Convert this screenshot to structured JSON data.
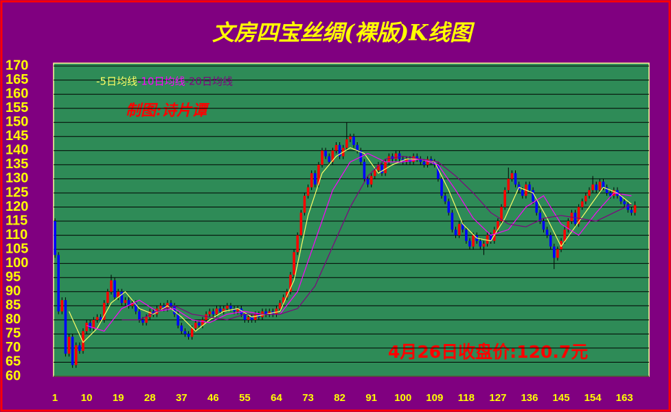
{
  "chart_data": {
    "type": "candlestick",
    "title": "文房四宝丝绸(裸版)K线图",
    "annotation": "制图:诗片谭",
    "close_note": "4月26日收盘价:120.7元",
    "up_color": "#ff0000",
    "down_color": "#0000ff",
    "ylim": [
      60,
      171
    ],
    "yticks": [
      60,
      65,
      70,
      75,
      80,
      85,
      90,
      95,
      100,
      105,
      110,
      115,
      120,
      125,
      130,
      135,
      140,
      145,
      150,
      155,
      160,
      165,
      170
    ],
    "xlim": [
      0.6,
      170
    ],
    "xticks": [
      1,
      10,
      19,
      28,
      37,
      46,
      55,
      64,
      73,
      82,
      91,
      100,
      109,
      118,
      127,
      136,
      145,
      154,
      163
    ],
    "grid": true,
    "x": [
      1,
      2,
      3,
      4,
      5,
      6,
      7,
      8,
      9,
      10,
      11,
      12,
      13,
      14,
      15,
      16,
      17,
      18,
      19,
      20,
      21,
      22,
      23,
      24,
      25,
      26,
      27,
      28,
      29,
      30,
      31,
      32,
      33,
      34,
      35,
      36,
      37,
      38,
      39,
      40,
      41,
      42,
      43,
      44,
      45,
      46,
      47,
      48,
      49,
      50,
      51,
      52,
      53,
      54,
      55,
      56,
      57,
      58,
      59,
      60,
      61,
      62,
      63,
      64,
      65,
      66,
      67,
      68,
      69,
      70,
      71,
      72,
      73,
      74,
      75,
      76,
      77,
      78,
      79,
      80,
      81,
      82,
      83,
      84,
      85,
      86,
      87,
      88,
      89,
      90,
      91,
      92,
      93,
      94,
      95,
      96,
      97,
      98,
      99,
      100,
      101,
      102,
      103,
      104,
      105,
      106,
      107,
      108,
      109,
      110,
      111,
      112,
      113,
      114,
      115,
      116,
      117,
      118,
      119,
      120,
      121,
      122,
      123,
      124,
      125,
      126,
      127,
      128,
      129,
      130,
      131,
      132,
      133,
      134,
      135,
      136,
      137,
      138,
      139,
      140,
      141,
      142,
      143,
      144,
      145,
      146,
      147,
      148,
      149,
      150,
      151,
      152,
      153,
      154,
      155,
      156,
      157,
      158,
      159,
      160,
      161,
      162,
      163,
      164,
      165,
      166
    ],
    "candles": [
      [
        115,
        116,
        102,
        103
      ],
      [
        103,
        104,
        82,
        83
      ],
      [
        83,
        88,
        82,
        87
      ],
      [
        87,
        88,
        67,
        68
      ],
      [
        68,
        75,
        67,
        74
      ],
      [
        74,
        75,
        63,
        64
      ],
      [
        64,
        72,
        63,
        71
      ],
      [
        71,
        72,
        68,
        69
      ],
      [
        69,
        77,
        68,
        76
      ],
      [
        76,
        80,
        75,
        79
      ],
      [
        79,
        80,
        76,
        77
      ],
      [
        77,
        81,
        76,
        80
      ],
      [
        80,
        82,
        79,
        81
      ],
      [
        81,
        82,
        79,
        80
      ],
      [
        80,
        87,
        79,
        86
      ],
      [
        86,
        91,
        85,
        90
      ],
      [
        90,
        96,
        89,
        94
      ],
      [
        94,
        95,
        87,
        88
      ],
      [
        88,
        91,
        87,
        90
      ],
      [
        90,
        91,
        85,
        86
      ],
      [
        86,
        88,
        85,
        87
      ],
      [
        87,
        88,
        84,
        85
      ],
      [
        85,
        87,
        84,
        86
      ],
      [
        86,
        87,
        82,
        83
      ],
      [
        83,
        84,
        79,
        80
      ],
      [
        80,
        81,
        78,
        79
      ],
      [
        79,
        82,
        78,
        81
      ],
      [
        81,
        84,
        80,
        83
      ],
      [
        83,
        84,
        81,
        82
      ],
      [
        82,
        85,
        81,
        84
      ],
      [
        84,
        86,
        83,
        85
      ],
      [
        85,
        86,
        83,
        84
      ],
      [
        84,
        87,
        83,
        86
      ],
      [
        86,
        87,
        84,
        85
      ],
      [
        85,
        86,
        81,
        82
      ],
      [
        82,
        83,
        77,
        78
      ],
      [
        78,
        79,
        75,
        76
      ],
      [
        76,
        77,
        74,
        75
      ],
      [
        75,
        76,
        73,
        74
      ],
      [
        74,
        78,
        73,
        77
      ],
      [
        77,
        80,
        76,
        79
      ],
      [
        79,
        80,
        77,
        78
      ],
      [
        78,
        81,
        77,
        80
      ],
      [
        80,
        83,
        79,
        82
      ],
      [
        82,
        84,
        81,
        83
      ],
      [
        83,
        84,
        81,
        82
      ],
      [
        82,
        85,
        81,
        84
      ],
      [
        84,
        85,
        82,
        83
      ],
      [
        83,
        85,
        82,
        84
      ],
      [
        84,
        86,
        83,
        85
      ],
      [
        85,
        86,
        83,
        84
      ],
      [
        84,
        85,
        82,
        83
      ],
      [
        83,
        85,
        82,
        84
      ],
      [
        84,
        85,
        81,
        82
      ],
      [
        82,
        83,
        79,
        80
      ],
      [
        80,
        82,
        79,
        81
      ],
      [
        81,
        82,
        79,
        80
      ],
      [
        80,
        83,
        79,
        82
      ],
      [
        82,
        83,
        80,
        81
      ],
      [
        81,
        84,
        80,
        83
      ],
      [
        83,
        84,
        81,
        82
      ],
      [
        82,
        84,
        81,
        83
      ],
      [
        83,
        84,
        81,
        82
      ],
      [
        82,
        85,
        81,
        84
      ],
      [
        84,
        87,
        83,
        86
      ],
      [
        86,
        89,
        85,
        88
      ],
      [
        88,
        91,
        87,
        90
      ],
      [
        90,
        97,
        89,
        96
      ],
      [
        96,
        105,
        95,
        104
      ],
      [
        104,
        111,
        103,
        110
      ],
      [
        110,
        119,
        109,
        118
      ],
      [
        118,
        125,
        117,
        124
      ],
      [
        124,
        128,
        123,
        127
      ],
      [
        127,
        133,
        126,
        132
      ],
      [
        132,
        133,
        127,
        128
      ],
      [
        128,
        136,
        127,
        135
      ],
      [
        135,
        141,
        134,
        140
      ],
      [
        140,
        141,
        137,
        138
      ],
      [
        138,
        139,
        135,
        136
      ],
      [
        136,
        141,
        135,
        140
      ],
      [
        140,
        143,
        139,
        142
      ],
      [
        142,
        143,
        137,
        138
      ],
      [
        138,
        142,
        137,
        141
      ],
      [
        141,
        150,
        140,
        144
      ],
      [
        144,
        146,
        143,
        145
      ],
      [
        145,
        146,
        141,
        142
      ],
      [
        142,
        143,
        139,
        140
      ],
      [
        140,
        141,
        135,
        136
      ],
      [
        136,
        137,
        129,
        130
      ],
      [
        130,
        131,
        127,
        128
      ],
      [
        128,
        132,
        127,
        131
      ],
      [
        131,
        134,
        130,
        133
      ],
      [
        133,
        136,
        132,
        135
      ],
      [
        135,
        136,
        131,
        132
      ],
      [
        132,
        137,
        131,
        136
      ],
      [
        136,
        139,
        135,
        138
      ],
      [
        138,
        139,
        136,
        137
      ],
      [
        137,
        140,
        136,
        139
      ],
      [
        139,
        140,
        136,
        137
      ],
      [
        137,
        138,
        135,
        136
      ],
      [
        136,
        138,
        135,
        137
      ],
      [
        137,
        138,
        135,
        136
      ],
      [
        136,
        139,
        135,
        138
      ],
      [
        138,
        139,
        136,
        137
      ],
      [
        137,
        138,
        135,
        136
      ],
      [
        136,
        137,
        134,
        135
      ],
      [
        135,
        138,
        134,
        137
      ],
      [
        137,
        138,
        135,
        136
      ],
      [
        136,
        137,
        134,
        135
      ],
      [
        135,
        136,
        129,
        130
      ],
      [
        130,
        131,
        123,
        124
      ],
      [
        124,
        125,
        121,
        122
      ],
      [
        122,
        123,
        117,
        118
      ],
      [
        118,
        119,
        111,
        112
      ],
      [
        112,
        113,
        109,
        110
      ],
      [
        110,
        115,
        109,
        114
      ],
      [
        114,
        115,
        111,
        112
      ],
      [
        112,
        113,
        107,
        108
      ],
      [
        108,
        109,
        105,
        106
      ],
      [
        106,
        111,
        105,
        110
      ],
      [
        110,
        111,
        107,
        108
      ],
      [
        108,
        109,
        105,
        106
      ],
      [
        106,
        108,
        103,
        107
      ],
      [
        107,
        111,
        106,
        110
      ],
      [
        110,
        111,
        107,
        108
      ],
      [
        108,
        113,
        107,
        112
      ],
      [
        112,
        116,
        111,
        115
      ],
      [
        115,
        121,
        114,
        120
      ],
      [
        120,
        127,
        119,
        126
      ],
      [
        126,
        134,
        125,
        130
      ],
      [
        130,
        133,
        129,
        132
      ],
      [
        132,
        133,
        127,
        128
      ],
      [
        128,
        129,
        125,
        126
      ],
      [
        126,
        127,
        123,
        124
      ],
      [
        124,
        129,
        123,
        128
      ],
      [
        128,
        129,
        125,
        126
      ],
      [
        126,
        127,
        121,
        122
      ],
      [
        122,
        123,
        117,
        118
      ],
      [
        118,
        119,
        114,
        115
      ],
      [
        115,
        116,
        111,
        112
      ],
      [
        112,
        113,
        109,
        110
      ],
      [
        110,
        111,
        105,
        106
      ],
      [
        106,
        107,
        98,
        102
      ],
      [
        102,
        106,
        101,
        105
      ],
      [
        105,
        109,
        104,
        108
      ],
      [
        108,
        113,
        107,
        112
      ],
      [
        112,
        116,
        111,
        115
      ],
      [
        115,
        119,
        114,
        118
      ],
      [
        118,
        119,
        113,
        114
      ],
      [
        114,
        121,
        113,
        120
      ],
      [
        120,
        123,
        119,
        122
      ],
      [
        122,
        125,
        121,
        124
      ],
      [
        124,
        127,
        123,
        126
      ],
      [
        126,
        131,
        125,
        128
      ],
      [
        128,
        129,
        125,
        126
      ],
      [
        126,
        130,
        125,
        129
      ],
      [
        129,
        130,
        126,
        127
      ],
      [
        127,
        128,
        124,
        125
      ],
      [
        125,
        126,
        123,
        124
      ],
      [
        124,
        127,
        123,
        126
      ],
      [
        126,
        127,
        123,
        124
      ],
      [
        124,
        125,
        121,
        122
      ],
      [
        122,
        123,
        120,
        121
      ],
      [
        121,
        122,
        118,
        119
      ],
      [
        119,
        120,
        117,
        118
      ],
      [
        118,
        122,
        117,
        120.7
      ]
    ],
    "series": [
      {
        "name": "-5日均线",
        "color": "#ffff66",
        "x": [
          5,
          9,
          13,
          17,
          21,
          25,
          29,
          33,
          37,
          41,
          45,
          49,
          53,
          57,
          61,
          65,
          69,
          73,
          77,
          81,
          85,
          89,
          93,
          97,
          101,
          105,
          109,
          113,
          117,
          121,
          125,
          129,
          133,
          137,
          141,
          145,
          149,
          153,
          157,
          161,
          165
        ],
        "values": [
          83,
          72,
          77,
          86,
          90,
          84,
          82,
          85,
          81,
          76,
          80,
          83,
          84,
          81,
          82,
          83,
          94,
          117,
          132,
          138,
          141,
          139,
          132,
          135,
          137,
          137,
          136,
          126,
          114,
          109,
          108,
          116,
          127,
          125,
          116,
          106,
          113,
          120,
          127,
          125,
          121
        ]
      },
      {
        "name": "-10日均线",
        "color": "#ff00ff",
        "x": [
          10,
          15,
          20,
          25,
          30,
          35,
          40,
          45,
          50,
          55,
          60,
          65,
          70,
          75,
          80,
          85,
          90,
          95,
          100,
          105,
          110,
          115,
          120,
          125,
          130,
          135,
          140,
          145,
          150,
          155,
          160,
          165
        ],
        "values": [
          78,
          76,
          84,
          87,
          83,
          84,
          80,
          79,
          82,
          83,
          82,
          82,
          90,
          108,
          126,
          136,
          139,
          136,
          136,
          137,
          135,
          126,
          116,
          110,
          112,
          120,
          124,
          114,
          110,
          118,
          125,
          124
        ]
      },
      {
        "name": "-20日均线",
        "color": "#800080",
        "x": [
          20,
          25,
          30,
          35,
          40,
          45,
          50,
          55,
          60,
          65,
          70,
          75,
          80,
          85,
          90,
          95,
          100,
          105,
          110,
          115,
          120,
          125,
          130,
          135,
          140,
          145,
          150,
          155,
          160,
          165
        ],
        "values": [
          80,
          80,
          83,
          85,
          82,
          81,
          80,
          82,
          82,
          82,
          84,
          92,
          106,
          120,
          131,
          137,
          138,
          137,
          136,
          131,
          125,
          118,
          114,
          113,
          116,
          117,
          116,
          115,
          118,
          121
        ]
      }
    ]
  }
}
